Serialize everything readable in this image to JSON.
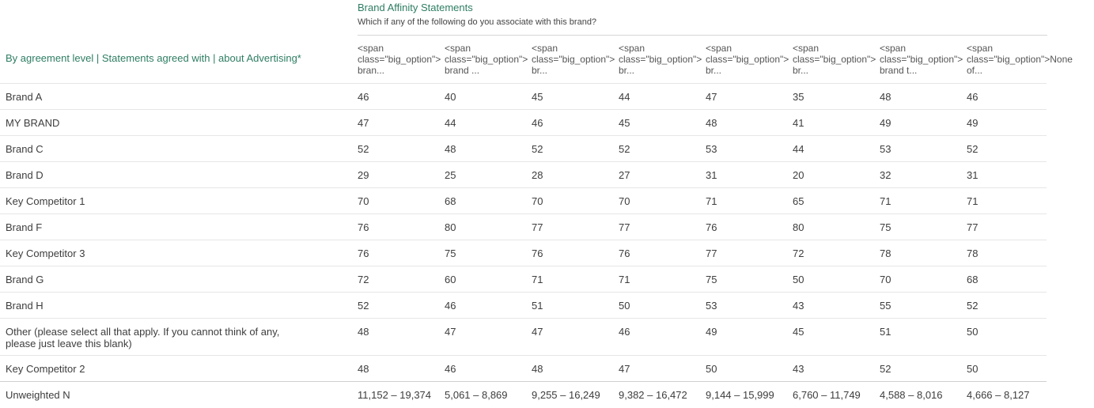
{
  "header": {
    "title": "Brand Affinity Statements",
    "subtitle": "Which if any of the following do you associate with this brand?"
  },
  "row_axis_label": "By agreement level | Statements agreed with | about Advertising*",
  "columns": [
    "<span\nclass=\"big_option\">\nbran...",
    "<span\nclass=\"big_option\">\nbrand ...",
    "<span\nclass=\"big_option\">\nbr...",
    "<span\nclass=\"big_option\">\nbr...",
    "<span\nclass=\"big_option\">\nbr...",
    "<span\nclass=\"big_option\">\nbr...",
    "<span\nclass=\"big_option\">\nbrand t...",
    "<span\nclass=\"big_option\">None\nof..."
  ],
  "rows": [
    {
      "label": "Brand A",
      "values": [
        "46",
        "40",
        "45",
        "44",
        "47",
        "35",
        "48",
        "46"
      ]
    },
    {
      "label": "MY BRAND",
      "values": [
        "47",
        "44",
        "46",
        "45",
        "48",
        "41",
        "49",
        "49"
      ]
    },
    {
      "label": "Brand C",
      "values": [
        "52",
        "48",
        "52",
        "52",
        "53",
        "44",
        "53",
        "52"
      ]
    },
    {
      "label": "Brand D",
      "values": [
        "29",
        "25",
        "28",
        "27",
        "31",
        "20",
        "32",
        "31"
      ]
    },
    {
      "label": "Key Competitor 1",
      "values": [
        "70",
        "68",
        "70",
        "70",
        "71",
        "65",
        "71",
        "71"
      ]
    },
    {
      "label": "Brand F",
      "values": [
        "76",
        "80",
        "77",
        "77",
        "76",
        "80",
        "75",
        "77"
      ]
    },
    {
      "label": "Key Competitor 3",
      "values": [
        "76",
        "75",
        "76",
        "76",
        "77",
        "72",
        "78",
        "78"
      ]
    },
    {
      "label": "Brand G",
      "values": [
        "72",
        "60",
        "71",
        "71",
        "75",
        "50",
        "70",
        "68"
      ]
    },
    {
      "label": "Brand H",
      "values": [
        "52",
        "46",
        "51",
        "50",
        "53",
        "43",
        "55",
        "52"
      ]
    },
    {
      "label": "Other (please select all that apply. If you cannot think of any, please just leave this blank)",
      "values": [
        "48",
        "47",
        "47",
        "46",
        "49",
        "45",
        "51",
        "50"
      ]
    },
    {
      "label": "Key Competitor 2",
      "values": [
        "48",
        "46",
        "48",
        "47",
        "50",
        "43",
        "52",
        "50"
      ]
    },
    {
      "label": "Unweighted N",
      "values": [
        "11,152 – 19,374",
        "5,061 – 8,869",
        "9,255 – 16,249",
        "9,382 – 16,472",
        "9,144 – 15,999",
        "6,760 – 11,749",
        "4,588 – 8,016",
        "4,666 – 8,127"
      ]
    }
  ],
  "colors": {
    "accent": "#2e7d64",
    "text": "#3d3d3d",
    "divider": "#e6e6e6"
  }
}
